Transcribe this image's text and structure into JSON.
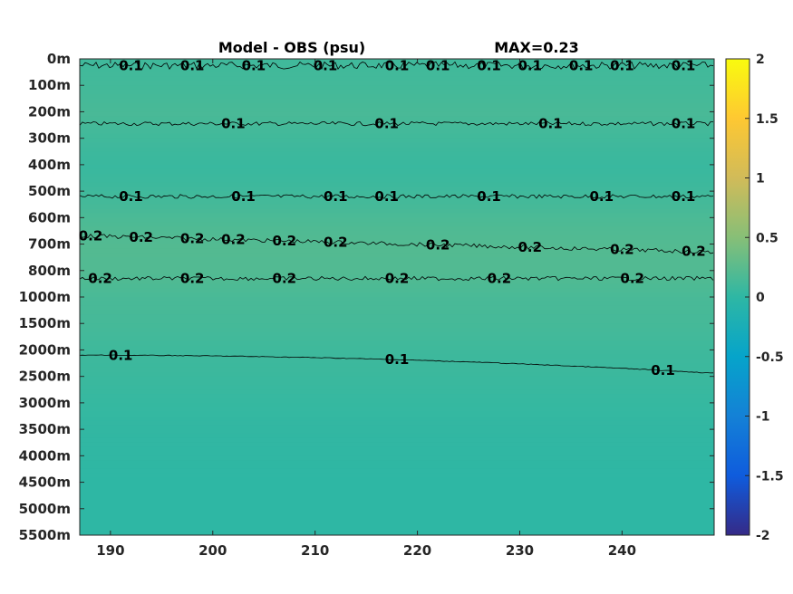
{
  "chart_data": {
    "type": "heatmap",
    "title": "Model - OBS (psu)",
    "max_label": "MAX=0.23",
    "xlim": [
      187,
      249
    ],
    "xticks": [
      190,
      200,
      210,
      220,
      230,
      240
    ],
    "depth_ticks": [
      "0m",
      "100m",
      "200m",
      "300m",
      "400m",
      "500m",
      "600m",
      "700m",
      "800m",
      "1000m",
      "1500m",
      "2000m",
      "2500m",
      "3000m",
      "3500m",
      "4000m",
      "4500m",
      "5000m",
      "5500m"
    ],
    "colorbar": {
      "range": [
        -2,
        2
      ],
      "ticks": [
        "2",
        "1.5",
        "1",
        "0.5",
        "0",
        "-0.5",
        "-1",
        "-1.5",
        "-2"
      ],
      "colormap": "parula"
    },
    "layer_values": [
      0.1,
      0.12,
      0.15,
      0.1,
      0.06,
      0.1,
      0.17,
      0.21,
      0.2,
      0.15,
      0.13,
      0.09,
      0.07,
      0.04,
      0.02,
      0.01,
      0.0,
      0.0
    ],
    "contours": [
      {
        "level": 0.1,
        "depth_index": 0.25,
        "labels": [
          {
            "x": 192,
            "text": "0.1"
          },
          {
            "x": 198,
            "text": "0.1"
          },
          {
            "x": 204,
            "text": "0.1"
          },
          {
            "x": 211,
            "text": "0.1"
          },
          {
            "x": 218,
            "text": "0.1"
          },
          {
            "x": 222,
            "text": "0.1"
          },
          {
            "x": 227,
            "text": "0.1"
          },
          {
            "x": 231,
            "text": "0.1"
          },
          {
            "x": 236,
            "text": "0.1"
          },
          {
            "x": 240,
            "text": "0.1"
          },
          {
            "x": 246,
            "text": "0.1"
          }
        ]
      },
      {
        "level": 0.1,
        "depth_index": 2.45,
        "labels": [
          {
            "x": 202,
            "text": "0.1"
          },
          {
            "x": 217,
            "text": "0.1"
          },
          {
            "x": 233,
            "text": "0.1"
          },
          {
            "x": 246,
            "text": "0.1"
          }
        ]
      },
      {
        "level": 0.1,
        "depth_index": 5.2,
        "labels": [
          {
            "x": 192,
            "text": "0.1"
          },
          {
            "x": 203,
            "text": "0.1"
          },
          {
            "x": 212,
            "text": "0.1"
          },
          {
            "x": 217,
            "text": "0.1"
          },
          {
            "x": 227,
            "text": "0.1"
          },
          {
            "x": 238,
            "text": "0.1"
          },
          {
            "x": 246,
            "text": "0.1"
          }
        ]
      },
      {
        "level": 0.2,
        "depth_index": 7.3,
        "labels": [
          {
            "x": 188,
            "text": "0.2"
          },
          {
            "x": 193,
            "text": "0.2"
          },
          {
            "x": 198,
            "text": "0.2"
          },
          {
            "x": 202,
            "text": "0.2"
          },
          {
            "x": 207,
            "text": "0.2"
          },
          {
            "x": 212,
            "text": "0.2"
          },
          {
            "x": 222,
            "text": "0.2"
          },
          {
            "x": 231,
            "text": "0.2"
          },
          {
            "x": 240,
            "text": "0.2"
          },
          {
            "x": 247,
            "text": "0.2"
          }
        ]
      },
      {
        "level": 0.2,
        "depth_index": 8.3,
        "labels": [
          {
            "x": 189,
            "text": "0.2"
          },
          {
            "x": 198,
            "text": "0.2"
          },
          {
            "x": 207,
            "text": "0.2"
          },
          {
            "x": 218,
            "text": "0.2"
          },
          {
            "x": 228,
            "text": "0.2"
          },
          {
            "x": 241,
            "text": "0.2"
          }
        ]
      },
      {
        "level": 0.1,
        "depth_index": 11.3,
        "labels": [
          {
            "x": 191,
            "text": "0.1"
          },
          {
            "x": 218,
            "text": "0.1"
          },
          {
            "x": 244,
            "text": "0.1"
          }
        ]
      }
    ]
  }
}
